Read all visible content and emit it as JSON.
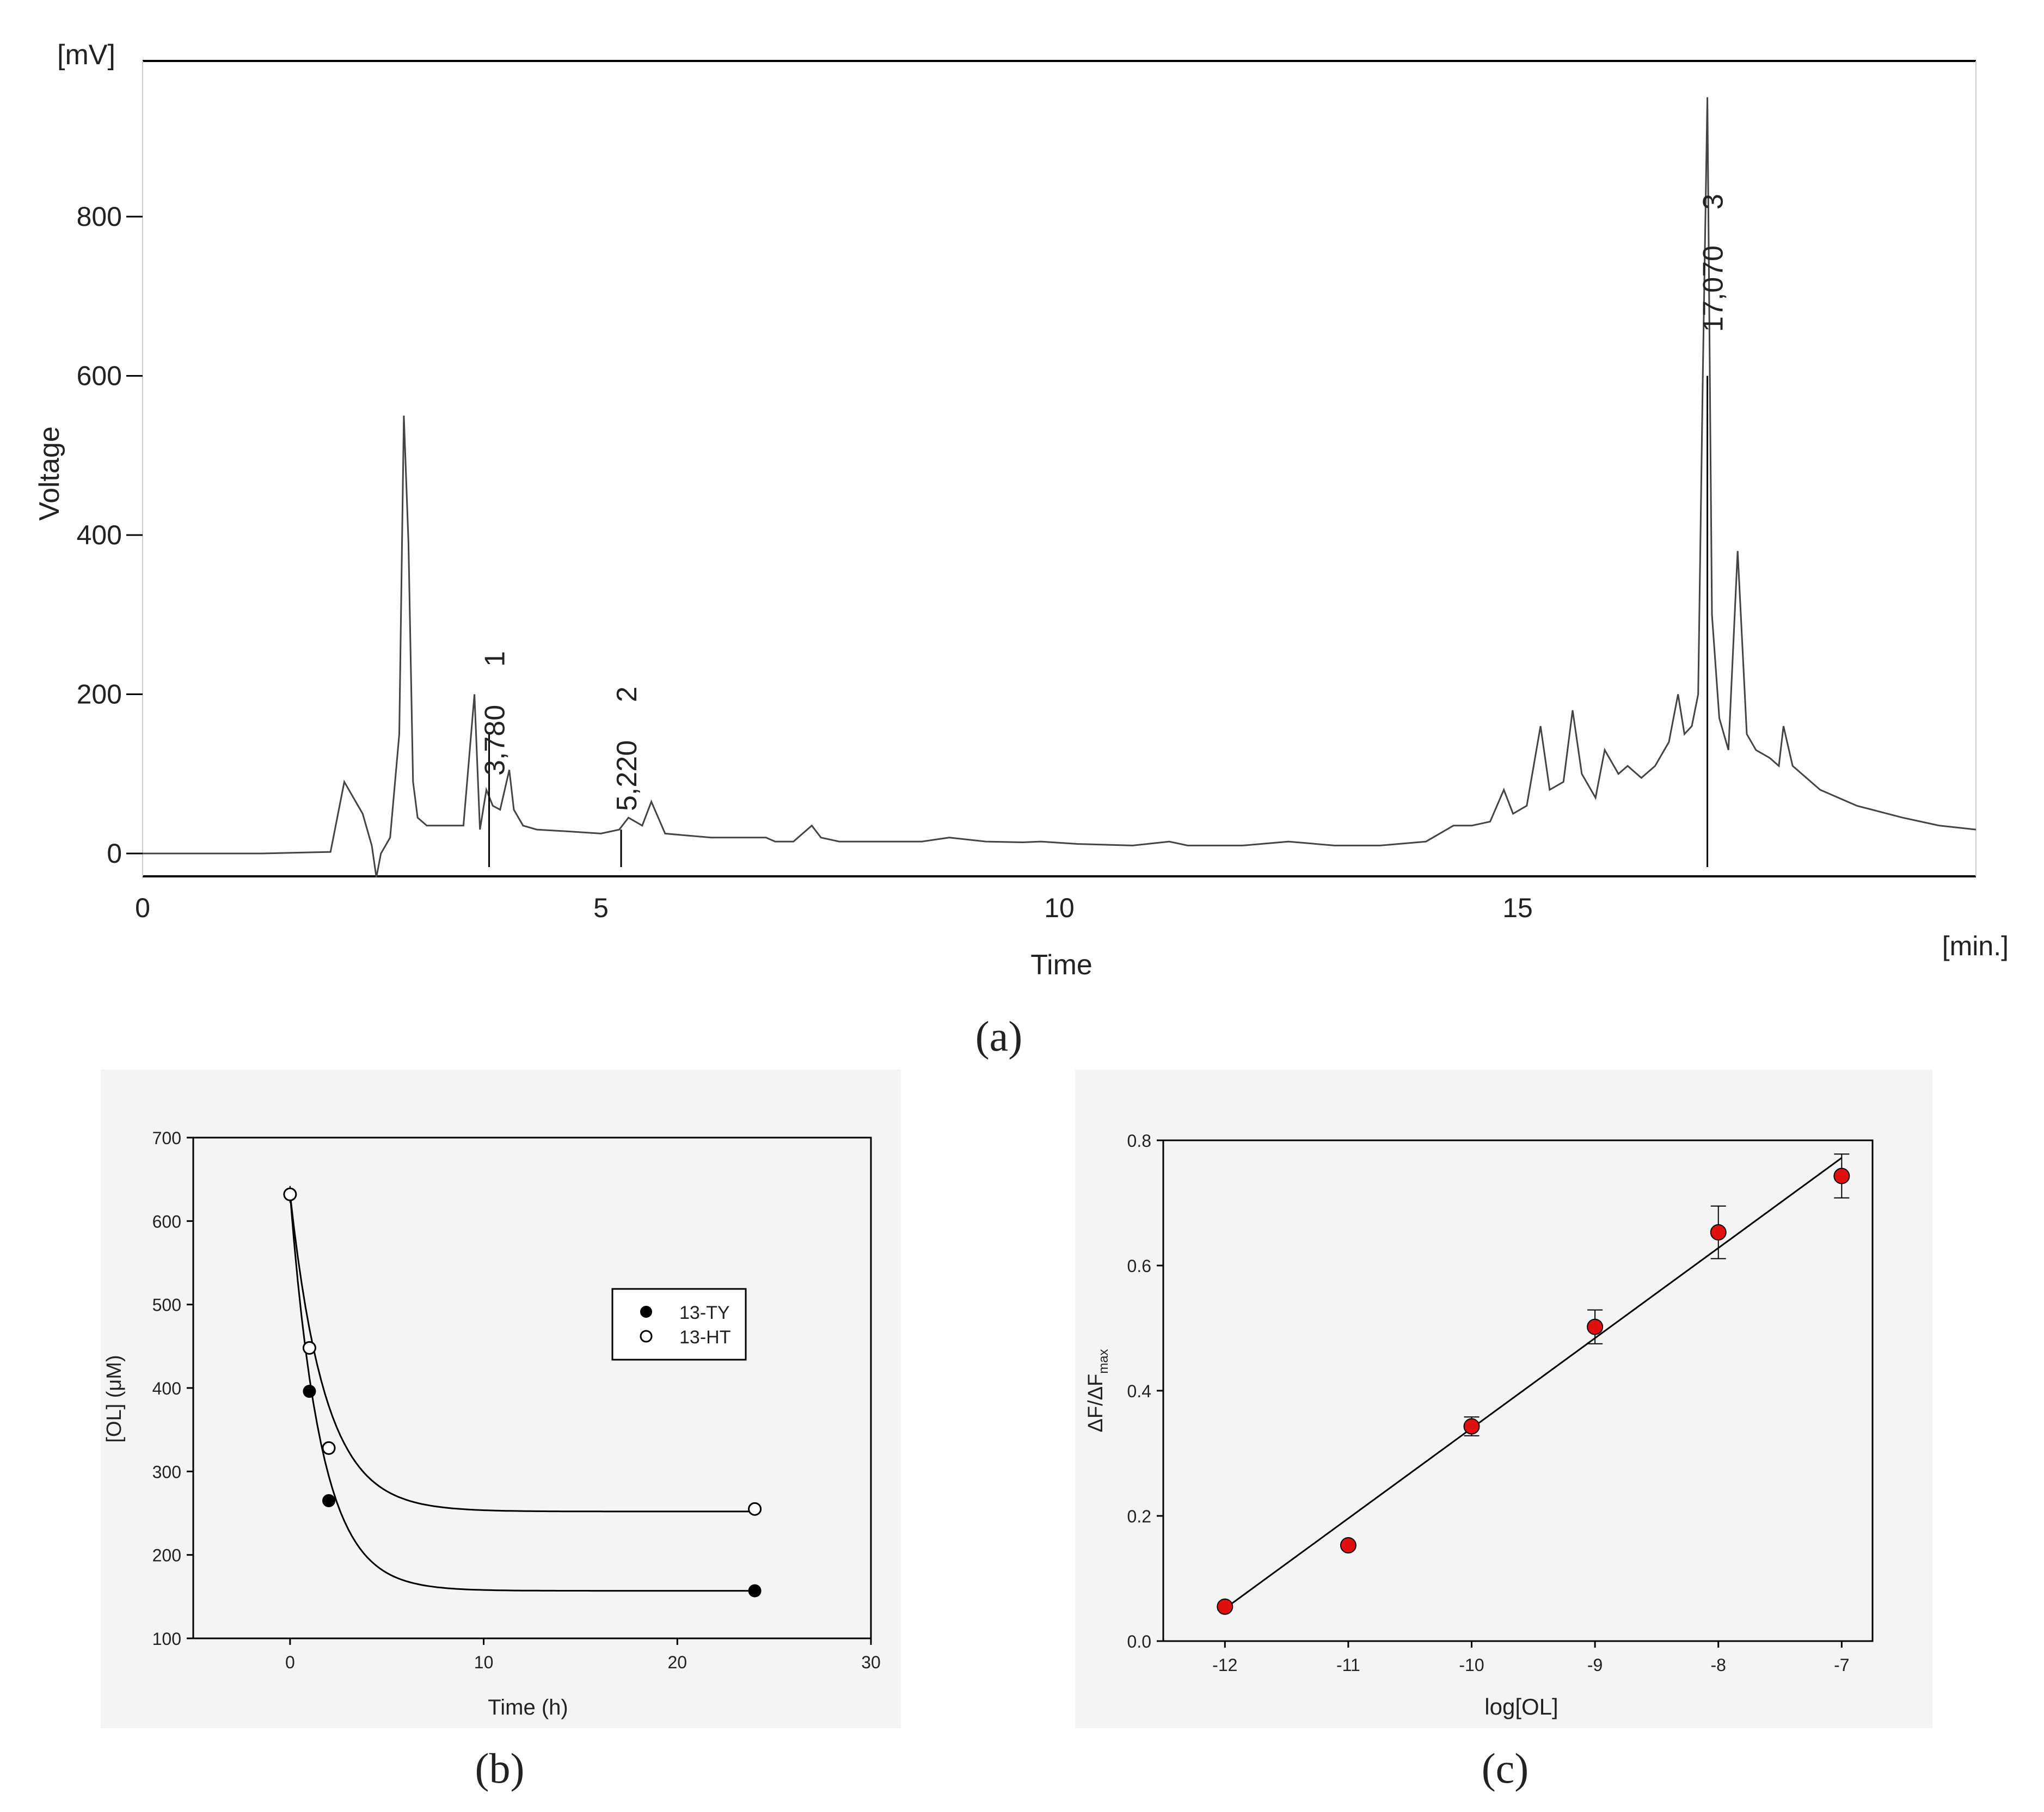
{
  "panel_labels": {
    "a": "(a)",
    "b": "(b)",
    "c": "(c)"
  },
  "colors": {
    "trace": "#444444",
    "marker_red": "#e01010",
    "panel_bg": "#f4f4f4",
    "axis": "#000000"
  },
  "chart_data": [
    {
      "id": "a",
      "type": "line",
      "ylabel": "Voltage",
      "yunit": "[mV]",
      "xlabel": "Time",
      "xunit": "[min.]",
      "xlim": [
        0,
        20
      ],
      "ylim": [
        -30,
        1000
      ],
      "xticks": [
        0,
        5,
        10,
        15
      ],
      "yticks": [
        0,
        200,
        400,
        600,
        800
      ],
      "x": [
        0,
        1.3,
        2.05,
        2.2,
        2.3,
        2.4,
        2.5,
        2.55,
        2.6,
        2.7,
        2.8,
        2.85,
        2.9,
        2.95,
        3.0,
        3.1,
        3.3,
        3.5,
        3.62,
        3.68,
        3.75,
        3.82,
        3.9,
        4.0,
        4.05,
        4.15,
        4.3,
        4.6,
        5.0,
        5.2,
        5.3,
        5.45,
        5.55,
        5.7,
        6.2,
        6.8,
        6.9,
        7.1,
        7.3,
        7.4,
        7.6,
        8.0,
        8.5,
        8.8,
        9.2,
        9.6,
        9.8,
        10.2,
        10.8,
        11.2,
        11.4,
        12.0,
        12.5,
        13.0,
        13.5,
        14.0,
        14.3,
        14.5,
        14.7,
        14.85,
        14.95,
        15.1,
        15.25,
        15.35,
        15.5,
        15.6,
        15.7,
        15.85,
        15.95,
        16.1,
        16.2,
        16.35,
        16.5,
        16.65,
        16.75,
        16.82,
        16.9,
        16.97,
        17.02,
        17.07,
        17.12,
        17.2,
        17.3,
        17.4,
        17.5,
        17.6,
        17.75,
        17.85,
        17.9,
        18.0,
        18.3,
        18.7,
        19.2,
        19.6,
        20.0
      ],
      "values": [
        0,
        0,
        2,
        90,
        70,
        50,
        10,
        -30,
        0,
        20,
        150,
        550,
        390,
        90,
        45,
        35,
        35,
        35,
        200,
        30,
        80,
        60,
        55,
        105,
        55,
        35,
        30,
        28,
        25,
        30,
        45,
        35,
        65,
        25,
        20,
        20,
        15,
        15,
        35,
        20,
        15,
        15,
        15,
        20,
        15,
        14,
        15,
        12,
        10,
        15,
        10,
        10,
        15,
        10,
        10,
        15,
        35,
        35,
        40,
        80,
        50,
        60,
        160,
        80,
        90,
        180,
        100,
        70,
        130,
        100,
        110,
        95,
        110,
        140,
        200,
        150,
        160,
        200,
        600,
        950,
        300,
        170,
        130,
        380,
        150,
        130,
        120,
        110,
        160,
        110,
        80,
        60,
        45,
        35,
        30
      ],
      "annotations": [
        {
          "peak": "1",
          "rt": "3,780",
          "x": 3.78
        },
        {
          "peak": "2",
          "rt": "5,220",
          "x": 5.22
        },
        {
          "peak": "3",
          "rt": "17,070",
          "x": 17.07
        }
      ]
    },
    {
      "id": "b",
      "type": "scatter",
      "xlabel": "Time (h)",
      "ylabel": "[OL] (μM)",
      "xlim": [
        -5,
        30
      ],
      "ylim": [
        100,
        700
      ],
      "xticks": [
        0,
        10,
        20,
        30
      ],
      "yticks": [
        100,
        200,
        300,
        400,
        500,
        600,
        700
      ],
      "legend_position": "upper-right",
      "series": [
        {
          "name": "13-TY",
          "marker": "filled",
          "x": [
            0,
            1,
            2,
            24
          ],
          "y": [
            632,
            396,
            265,
            157
          ],
          "err": [
            10,
            6,
            6,
            4
          ],
          "fit": {
            "a": 157,
            "b": 475,
            "k": 0.62
          }
        },
        {
          "name": "13-HT",
          "marker": "open",
          "x": [
            0,
            1,
            2,
            24
          ],
          "y": [
            632,
            448,
            328,
            255
          ],
          "err": [
            10,
            6,
            6,
            6
          ],
          "fit": {
            "a": 252,
            "b": 380,
            "k": 0.55
          }
        }
      ]
    },
    {
      "id": "c",
      "type": "scatter",
      "xlabel": "log[OL]",
      "ylabel_main": "ΔF/ΔF",
      "ylabel_sub": "max",
      "xlim": [
        -12.5,
        -6.75
      ],
      "ylim": [
        0,
        0.8
      ],
      "xticks": [
        -12,
        -11,
        -10,
        -9,
        -8,
        -7
      ],
      "yticks": [
        "0.0",
        "0.2",
        "0.4",
        "0.6",
        "0.8"
      ],
      "x": [
        -12,
        -11,
        -10,
        -9,
        -8,
        -7
      ],
      "y": [
        0.055,
        0.153,
        0.343,
        0.502,
        0.653,
        0.743
      ],
      "err": [
        0.003,
        0.003,
        0.015,
        0.027,
        0.042,
        0.035
      ],
      "fit_line": {
        "x0": -12,
        "y0": 0.052,
        "x1": -7,
        "y1": 0.772
      }
    }
  ]
}
